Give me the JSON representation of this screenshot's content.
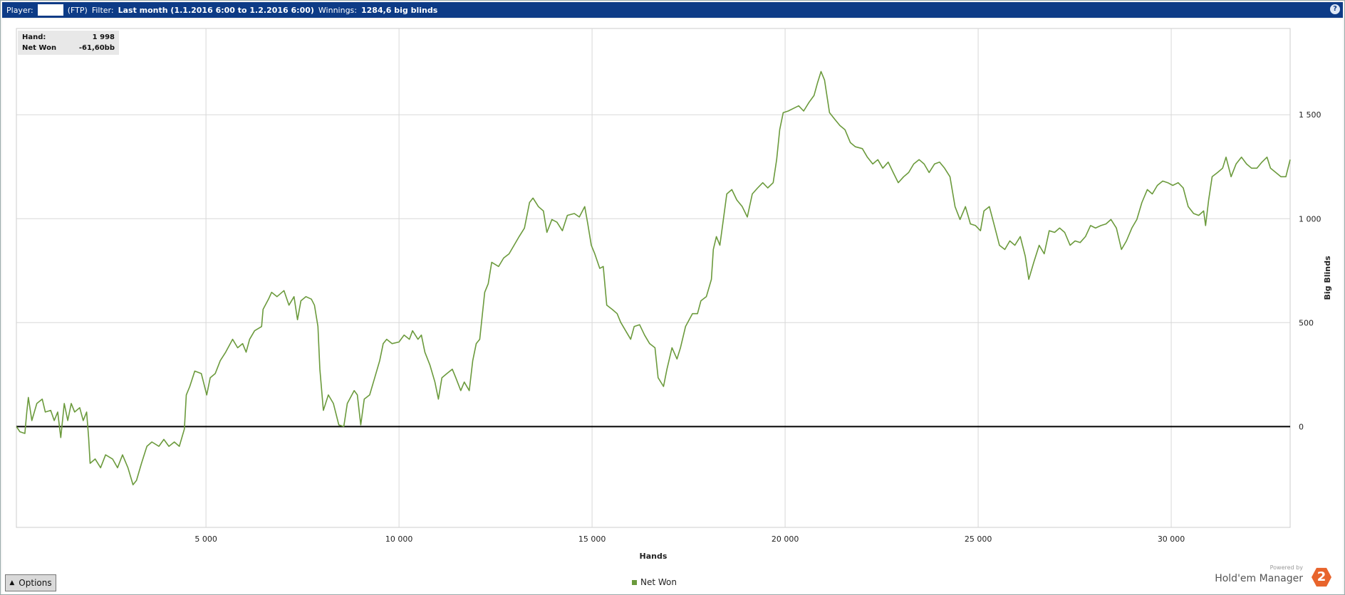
{
  "header": {
    "player_label": "Player:",
    "site": "(FTP)",
    "filter_label": "Filter:",
    "filter": "Last month (1.1.2016 6:00 to 1.2.2016 6:00)",
    "winnings_label": "Winnings:",
    "winnings": "1284,6 big blinds",
    "help": "?"
  },
  "tooltip": {
    "hand_label": "Hand:",
    "hand": "1 998",
    "net_won_label": "Net Won",
    "net_won": "-61,60bb"
  },
  "options_button": "Options",
  "branding": {
    "powered_by": "Powered by",
    "product": "Hold'em Manager",
    "logo": "2"
  },
  "chart_data": {
    "type": "line",
    "x_label": "Hands",
    "y_label": "Big Blinds",
    "grid": true,
    "legend": "bottom",
    "xlim": [
      90,
      33080
    ],
    "ylim": [
      -485,
      1915
    ],
    "xticks": [
      {
        "value": 5000,
        "label": "5 000"
      },
      {
        "value": 10000,
        "label": "10 000"
      },
      {
        "value": 15000,
        "label": "15 000"
      },
      {
        "value": 20000,
        "label": "20 000"
      },
      {
        "value": 25000,
        "label": "25 000"
      },
      {
        "value": 30000,
        "label": "30 000"
      }
    ],
    "yticks": [
      0,
      500,
      {
        "value": 1000,
        "label": "1 000"
      },
      {
        "value": 1500,
        "label": "1 500"
      }
    ],
    "x": [
      90,
      180,
      310,
      360,
      400,
      490,
      620,
      760,
      840,
      980,
      1070,
      1160,
      1240,
      1330,
      1420,
      1510,
      1600,
      1730,
      1820,
      1910,
      1960,
      2000,
      2130,
      2270,
      2400,
      2580,
      2710,
      2840,
      2980,
      3110,
      3200,
      3330,
      3470,
      3600,
      3780,
      3910,
      4040,
      4180,
      4310,
      4440,
      4490,
      4580,
      4710,
      4880,
      5020,
      5110,
      5240,
      5370,
      5510,
      5690,
      5820,
      5950,
      6040,
      6130,
      6260,
      6440,
      6480,
      6620,
      6700,
      6840,
      7020,
      7150,
      7280,
      7370,
      7460,
      7590,
      7730,
      7810,
      7900,
      7950,
      8040,
      8170,
      8300,
      8440,
      8570,
      8660,
      8840,
      8920,
      9010,
      9100,
      9240,
      9370,
      9500,
      9590,
      9680,
      9820,
      10000,
      10130,
      10270,
      10350,
      10490,
      10580,
      10670,
      10800,
      10930,
      11020,
      11110,
      11240,
      11380,
      11470,
      11600,
      11690,
      11820,
      11910,
      12000,
      12090,
      12220,
      12310,
      12400,
      12580,
      12710,
      12850,
      12980,
      13110,
      13250,
      13380,
      13470,
      13610,
      13740,
      13830,
      13960,
      14090,
      14230,
      14360,
      14540,
      14670,
      14810,
      14890,
      14980,
      15070,
      15200,
      15290,
      15380,
      15520,
      15650,
      15740,
      15870,
      16000,
      16090,
      16230,
      16360,
      16490,
      16630,
      16710,
      16850,
      16940,
      17070,
      17200,
      17290,
      17420,
      17600,
      17730,
      17820,
      17960,
      18090,
      18140,
      18220,
      18310,
      18400,
      18490,
      18620,
      18750,
      18890,
      19020,
      19150,
      19290,
      19420,
      19550,
      19690,
      19780,
      19860,
      19950,
      20080,
      20220,
      20350,
      20480,
      20620,
      20750,
      20840,
      20930,
      21020,
      21150,
      21290,
      21420,
      21550,
      21690,
      21820,
      22000,
      22130,
      22270,
      22400,
      22530,
      22670,
      22800,
      22930,
      23070,
      23200,
      23330,
      23470,
      23600,
      23730,
      23870,
      24000,
      24130,
      24270,
      24400,
      24530,
      24670,
      24800,
      24930,
      25060,
      25150,
      25290,
      25420,
      25550,
      25690,
      25820,
      25950,
      26090,
      26220,
      26310,
      26440,
      26580,
      26710,
      26840,
      26980,
      27110,
      27240,
      27380,
      27510,
      27640,
      27780,
      27910,
      28040,
      28180,
      28310,
      28440,
      28580,
      28710,
      28840,
      28980,
      29110,
      29240,
      29380,
      29510,
      29640,
      29780,
      29910,
      30040,
      30180,
      30310,
      30440,
      30580,
      30710,
      30840,
      30890,
      30970,
      31060,
      31200,
      31330,
      31420,
      31550,
      31680,
      31820,
      31950,
      32080,
      32220,
      32350,
      32480,
      32570,
      32710,
      32840,
      32970,
      33080
    ],
    "series": [
      {
        "name": "Net Won",
        "color": "#6b9a3c",
        "values": [
          0,
          -25,
          -33,
          70,
          140,
          29,
          111,
          132,
          70,
          78,
          29,
          70,
          -53,
          111,
          29,
          111,
          70,
          91,
          29,
          70,
          -53,
          -177,
          -156,
          -198,
          -136,
          -156,
          -198,
          -136,
          -198,
          -280,
          -259,
          -177,
          -95,
          -74,
          -95,
          -62,
          -95,
          -74,
          -95,
          -12,
          152,
          193,
          267,
          255,
          152,
          235,
          255,
          317,
          358,
          420,
          379,
          399,
          358,
          420,
          461,
          481,
          564,
          613,
          646,
          625,
          654,
          584,
          625,
          514,
          605,
          625,
          613,
          584,
          481,
          276,
          78,
          152,
          111,
          8,
          0,
          111,
          173,
          152,
          8,
          132,
          152,
          235,
          317,
          399,
          420,
          399,
          407,
          440,
          420,
          461,
          420,
          440,
          358,
          296,
          214,
          132,
          235,
          255,
          276,
          235,
          173,
          214,
          173,
          317,
          399,
          420,
          646,
          687,
          790,
          770,
          811,
          831,
          872,
          914,
          955,
          1078,
          1099,
          1058,
          1037,
          934,
          996,
          983,
          942,
          1016,
          1025,
          1008,
          1058,
          975,
          872,
          831,
          761,
          770,
          584,
          564,
          543,
          502,
          461,
          420,
          481,
          490,
          440,
          399,
          379,
          235,
          193,
          276,
          379,
          325,
          379,
          481,
          543,
          543,
          605,
          625,
          708,
          852,
          914,
          872,
          996,
          1119,
          1140,
          1090,
          1058,
          1008,
          1119,
          1148,
          1173,
          1148,
          1173,
          1284,
          1428,
          1510,
          1518,
          1531,
          1543,
          1518,
          1560,
          1593,
          1654,
          1708,
          1667,
          1510,
          1477,
          1448,
          1428,
          1366,
          1346,
          1337,
          1296,
          1263,
          1284,
          1243,
          1272,
          1222,
          1173,
          1202,
          1222,
          1263,
          1284,
          1263,
          1222,
          1263,
          1272,
          1243,
          1202,
          1058,
          996,
          1058,
          975,
          967,
          942,
          1037,
          1058,
          967,
          872,
          852,
          893,
          872,
          914,
          819,
          708,
          790,
          872,
          831,
          942,
          934,
          955,
          934,
          872,
          893,
          885,
          914,
          967,
          955,
          967,
          975,
          996,
          955,
          852,
          893,
          955,
          996,
          1078,
          1140,
          1119,
          1160,
          1181,
          1173,
          1160,
          1173,
          1148,
          1058,
          1025,
          1016,
          1037,
          967,
          1090,
          1202,
          1222,
          1243,
          1296,
          1202,
          1263,
          1296,
          1263,
          1243,
          1243,
          1272,
          1296,
          1243,
          1222,
          1202,
          1202,
          1284
        ]
      }
    ]
  }
}
